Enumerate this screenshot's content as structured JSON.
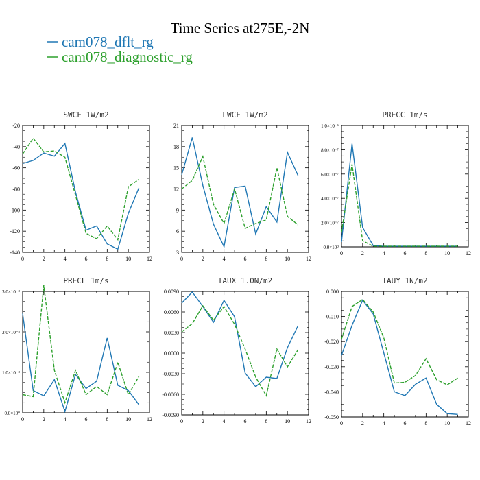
{
  "figure": {
    "title": "Time Series at275E,-2N",
    "legend": [
      {
        "label": "cam078_dflt_rg",
        "color": "#1f77b4",
        "dash": "solid"
      },
      {
        "label": "cam078_diagnostic_rg",
        "color": "#2ca02c",
        "dash": "dashed"
      }
    ]
  },
  "chart_data": [
    {
      "type": "line",
      "title": "SWCF   1W/m2",
      "x": [
        0,
        1,
        2,
        3,
        4,
        5,
        6,
        7,
        8,
        9,
        10,
        11
      ],
      "xlim": [
        0,
        12
      ],
      "xticks": [
        "0",
        "2",
        "4",
        "6",
        "8",
        "10",
        "12"
      ],
      "ylim": [
        -140,
        -20
      ],
      "yticks": [
        "-20",
        "-40",
        "-60",
        "-80",
        "-100",
        "-120",
        "-140"
      ],
      "series": [
        {
          "name": "cam078_dflt_rg",
          "values": [
            -56,
            -53,
            -46,
            -49,
            -37,
            -83,
            -119,
            -115,
            -132,
            -137,
            -103,
            -79
          ]
        },
        {
          "name": "cam078_diagnostic_rg",
          "values": [
            -47,
            -32,
            -45,
            -44,
            -50,
            -86,
            -122,
            -127,
            -115,
            -128,
            -78,
            -71
          ]
        }
      ]
    },
    {
      "type": "line",
      "title": "LWCF   1W/m2",
      "x": [
        0,
        1,
        2,
        3,
        4,
        5,
        6,
        7,
        8,
        9,
        10,
        11
      ],
      "xlim": [
        0,
        12
      ],
      "xticks": [
        "0",
        "2",
        "4",
        "6",
        "8",
        "10",
        "12"
      ],
      "ylim": [
        3,
        21
      ],
      "yticks": [
        "21",
        "18",
        "15",
        "12",
        "9",
        "6",
        "3"
      ],
      "series": [
        {
          "name": "cam078_dflt_rg",
          "values": [
            14,
            19.3,
            12.5,
            7,
            3.8,
            12.2,
            12.4,
            5.6,
            9.5,
            7.3,
            17.2,
            13.9
          ]
        },
        {
          "name": "cam078_diagnostic_rg",
          "values": [
            12,
            13.2,
            16.6,
            9.8,
            7.1,
            12,
            6.4,
            7.1,
            7.6,
            15,
            8.1,
            6.9
          ]
        }
      ]
    },
    {
      "type": "line",
      "title": "PRECC   1m/s",
      "x": [
        0,
        1,
        2,
        3,
        4,
        5,
        6,
        7,
        8,
        9,
        10,
        11
      ],
      "xlim": [
        0,
        12
      ],
      "xticks": [
        "0",
        "2",
        "4",
        "6",
        "8",
        "10",
        "12"
      ],
      "ylim": [
        0,
        1
      ],
      "yticks": [
        "1.0×10⁻⁶",
        "8.0×10⁻⁷",
        "6.0×10⁻⁷",
        "4.0×10⁻⁷",
        "2.0×10⁻⁷",
        "0.0×10⁰"
      ],
      "series": [
        {
          "name": "cam078_dflt_rg",
          "values": [
            0.04,
            0.85,
            0.16,
            0.01,
            0.005,
            0.005,
            0.005,
            0.005,
            0.005,
            0.005,
            0.005,
            0.005
          ]
        },
        {
          "name": "cam078_diagnostic_rg",
          "values": [
            0.12,
            0.68,
            0.05,
            0.005,
            0.005,
            0.005,
            0.005,
            0.005,
            0.005,
            0.005,
            0.005,
            0.005
          ]
        }
      ]
    },
    {
      "type": "line",
      "title": "PRECL   1m/s",
      "x": [
        0,
        1,
        2,
        3,
        4,
        5,
        6,
        7,
        8,
        9,
        10,
        11
      ],
      "xlim": [
        0,
        12
      ],
      "xticks": [
        "0",
        "2",
        "4",
        "6",
        "8",
        "10",
        "12"
      ],
      "ylim": [
        0,
        3
      ],
      "yticks": [
        "3.0×10⁻⁸",
        "2.0×10⁻⁸",
        "1.0×10⁻⁸",
        "0.0×10⁰"
      ],
      "series": [
        {
          "name": "cam078_dflt_rg",
          "values": [
            2.45,
            0.55,
            0.42,
            0.82,
            0.03,
            0.95,
            0.6,
            0.78,
            1.85,
            0.68,
            0.55,
            0.2
          ]
        },
        {
          "name": "cam078_diagnostic_rg",
          "values": [
            0.45,
            0.4,
            3.15,
            1.05,
            0.25,
            1.05,
            0.45,
            0.65,
            0.45,
            1.25,
            0.45,
            0.9
          ]
        }
      ]
    },
    {
      "type": "line",
      "title": "TAUX   1.0N/m2",
      "x": [
        0,
        1,
        2,
        3,
        4,
        5,
        6,
        7,
        8,
        9,
        10,
        11
      ],
      "xlim": [
        0,
        12
      ],
      "xticks": [
        "0",
        "2",
        "4",
        "6",
        "8",
        "10",
        "12"
      ],
      "ylim": [
        -0.009,
        0.009
      ],
      "yticks": [
        "0.0090",
        "0.0060",
        "0.0030",
        "0.0000",
        "-0.0030",
        "-0.0060",
        "-0.0090"
      ],
      "series": [
        {
          "name": "cam078_dflt_rg",
          "values": [
            0.0073,
            0.0089,
            0.0068,
            0.0045,
            0.0077,
            0.0053,
            -0.0029,
            -0.0049,
            -0.0035,
            -0.0037,
            0.0008,
            0.004
          ]
        },
        {
          "name": "cam078_diagnostic_rg",
          "values": [
            0.0031,
            0.0043,
            0.0069,
            0.0048,
            0.0068,
            0.0042,
            0.0006,
            -0.0035,
            -0.0062,
            0.0006,
            -0.002,
            0.0005
          ]
        }
      ]
    },
    {
      "type": "line",
      "title": "TAUY   1N/m2",
      "x": [
        0,
        1,
        2,
        3,
        4,
        5,
        6,
        7,
        8,
        9,
        10,
        11
      ],
      "xlim": [
        0,
        12
      ],
      "xticks": [
        "0",
        "2",
        "4",
        "6",
        "8",
        "10",
        "12"
      ],
      "ylim": [
        -0.05,
        0.0
      ],
      "yticks": [
        "0.000",
        "-0.010",
        "-0.020",
        "-0.030",
        "-0.040",
        "-0.050"
      ],
      "series": [
        {
          "name": "cam078_dflt_rg",
          "values": [
            -0.0255,
            -0.0135,
            -0.0035,
            -0.009,
            -0.0245,
            -0.04,
            -0.0415,
            -0.037,
            -0.0345,
            -0.045,
            -0.0487,
            -0.049
          ]
        },
        {
          "name": "cam078_diagnostic_rg",
          "values": [
            -0.019,
            -0.006,
            -0.0032,
            -0.0082,
            -0.0185,
            -0.0365,
            -0.0362,
            -0.0335,
            -0.0268,
            -0.0352,
            -0.0372,
            -0.0345
          ]
        }
      ]
    }
  ]
}
